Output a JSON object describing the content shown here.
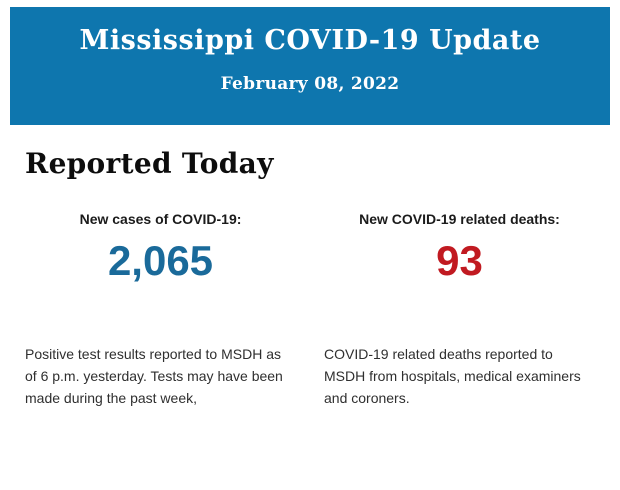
{
  "header": {
    "title": "Mississippi COVID-19 Update",
    "date": "February 08, 2022",
    "background_color": "#0e76ae",
    "text_color": "#ffffff"
  },
  "section": {
    "heading": "Reported Today"
  },
  "stats": [
    {
      "label": "New cases of COVID-19:",
      "value": "2,065",
      "value_color": "#1a6a9a",
      "description": "Positive test results reported to MSDH as of 6 p.m. yesterday. Tests may have been made during the past week,"
    },
    {
      "label": "New COVID-19 related deaths:",
      "value": "93",
      "value_color": "#c11a21",
      "description": "COVID-19 related deaths reported to MSDH from hospitals, medical examiners and coroners."
    }
  ]
}
